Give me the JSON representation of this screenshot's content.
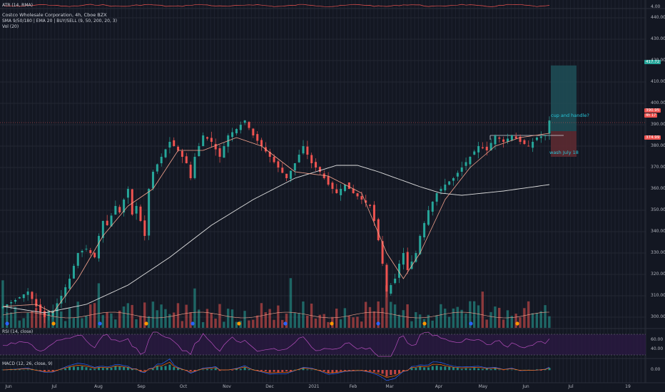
{
  "header": {
    "atr": "ATR (14, RMA)",
    "title": "Costco Wholesale Corporation, 4h, Cboe BZX",
    "indicators": "SMA 9/50/180 | EMA 20 | BUY/SELL (9, 50, 200, 20, 3)",
    "volume": "Vol (20)",
    "rsi": "RSI (14, close)",
    "macd": "MACD (12, 26, close, 9)"
  },
  "price_tags": {
    "current": "390.95",
    "current_sub": "4h 17",
    "upper": "417.72",
    "lower": "374.99"
  },
  "annotations": {
    "handle": "cup and handle?",
    "wash": "wash July 18"
  },
  "atr_tick": "4.00",
  "rsi_ticks": [
    "60.00",
    "40.00"
  ],
  "macd_tick": "0.00",
  "colors": {
    "background": "#131722",
    "up": "#26a69a",
    "down": "#ef5350",
    "sma_long": "#e0e0e0",
    "ema": "#f5a38e",
    "rsi_band": "#2a1942",
    "rsi_line": "#b84fbf",
    "projection_target": "#1f4f57",
    "projection_stop": "#5c2a31"
  },
  "chart_data": {
    "type": "candlestick",
    "title": "Costco Wholesale Corporation, 4h, Cboe BZX",
    "ylim": [
      295,
      445
    ],
    "y_ticks": [
      300,
      310,
      320,
      330,
      340,
      350,
      360,
      370,
      380,
      390,
      400,
      410,
      420,
      430,
      440
    ],
    "x_ticks": [
      "Jun",
      "Jul",
      "Aug",
      "Sep",
      "Oct",
      "Nov",
      "Dec",
      "2021",
      "Feb",
      "Mar",
      "Apr",
      "May",
      "Jun",
      "Jul",
      "19"
    ],
    "price_path": [
      [
        0,
        305
      ],
      [
        3,
        308
      ],
      [
        6,
        312
      ],
      [
        8,
        305
      ],
      [
        10,
        300
      ],
      [
        12,
        303
      ],
      [
        14,
        310
      ],
      [
        16,
        318
      ],
      [
        18,
        330
      ],
      [
        20,
        332
      ],
      [
        22,
        328
      ],
      [
        23,
        338
      ],
      [
        24,
        345
      ],
      [
        25,
        343
      ],
      [
        27,
        352
      ],
      [
        28,
        349
      ],
      [
        29,
        355
      ],
      [
        30,
        360
      ],
      [
        31,
        348
      ],
      [
        32,
        352
      ],
      [
        33,
        345
      ],
      [
        34,
        338
      ],
      [
        35,
        360
      ],
      [
        36,
        368
      ],
      [
        38,
        375
      ],
      [
        40,
        382
      ],
      [
        42,
        378
      ],
      [
        44,
        372
      ],
      [
        45,
        365
      ],
      [
        46,
        375
      ],
      [
        48,
        385
      ],
      [
        50,
        382
      ],
      [
        52,
        375
      ],
      [
        54,
        385
      ],
      [
        56,
        388
      ],
      [
        58,
        392
      ],
      [
        60,
        385
      ],
      [
        62,
        380
      ],
      [
        64,
        375
      ],
      [
        66,
        370
      ],
      [
        68,
        365
      ],
      [
        70,
        372
      ],
      [
        72,
        380
      ],
      [
        74,
        372
      ],
      [
        76,
        368
      ],
      [
        78,
        362
      ],
      [
        80,
        358
      ],
      [
        82,
        362
      ],
      [
        84,
        358
      ],
      [
        86,
        355
      ],
      [
        88,
        352
      ],
      [
        89,
        345
      ],
      [
        90,
        336
      ],
      [
        91,
        325
      ],
      [
        92,
        312
      ],
      [
        93,
        315
      ],
      [
        94,
        318
      ],
      [
        95,
        325
      ],
      [
        96,
        330
      ],
      [
        97,
        322
      ],
      [
        99,
        330
      ],
      [
        100,
        338
      ],
      [
        102,
        350
      ],
      [
        104,
        358
      ],
      [
        106,
        362
      ],
      [
        108,
        365
      ],
      [
        110,
        370
      ],
      [
        112,
        375
      ],
      [
        114,
        380
      ],
      [
        116,
        378
      ],
      [
        118,
        385
      ],
      [
        120,
        382
      ],
      [
        122,
        385
      ],
      [
        124,
        382
      ],
      [
        126,
        380
      ],
      [
        128,
        384
      ],
      [
        130,
        385
      ],
      [
        131,
        392
      ]
    ],
    "sma_180": [
      [
        0,
        305
      ],
      [
        10,
        302
      ],
      [
        20,
        306
      ],
      [
        30,
        315
      ],
      [
        40,
        328
      ],
      [
        50,
        343
      ],
      [
        60,
        355
      ],
      [
        70,
        365
      ],
      [
        80,
        371
      ],
      [
        85,
        371
      ],
      [
        90,
        368
      ],
      [
        100,
        361
      ],
      [
        105,
        358
      ],
      [
        110,
        357
      ],
      [
        120,
        359
      ],
      [
        131,
        362
      ]
    ],
    "ema_20": [
      [
        0,
        305
      ],
      [
        8,
        306
      ],
      [
        12,
        302
      ],
      [
        18,
        318
      ],
      [
        24,
        338
      ],
      [
        30,
        352
      ],
      [
        36,
        360
      ],
      [
        42,
        378
      ],
      [
        48,
        378
      ],
      [
        56,
        384
      ],
      [
        62,
        380
      ],
      [
        70,
        368
      ],
      [
        78,
        366
      ],
      [
        86,
        358
      ],
      [
        92,
        330
      ],
      [
        96,
        318
      ],
      [
        100,
        330
      ],
      [
        106,
        355
      ],
      [
        112,
        370
      ],
      [
        118,
        380
      ],
      [
        124,
        384
      ],
      [
        131,
        386
      ]
    ],
    "resistance": 385,
    "projection": {
      "target": 417.72,
      "stop": 374.99,
      "entry": 387
    },
    "events": [
      "D",
      "E",
      "D",
      "E",
      "D",
      "E",
      "D",
      "E",
      "D",
      "E",
      "D",
      "E"
    ]
  }
}
